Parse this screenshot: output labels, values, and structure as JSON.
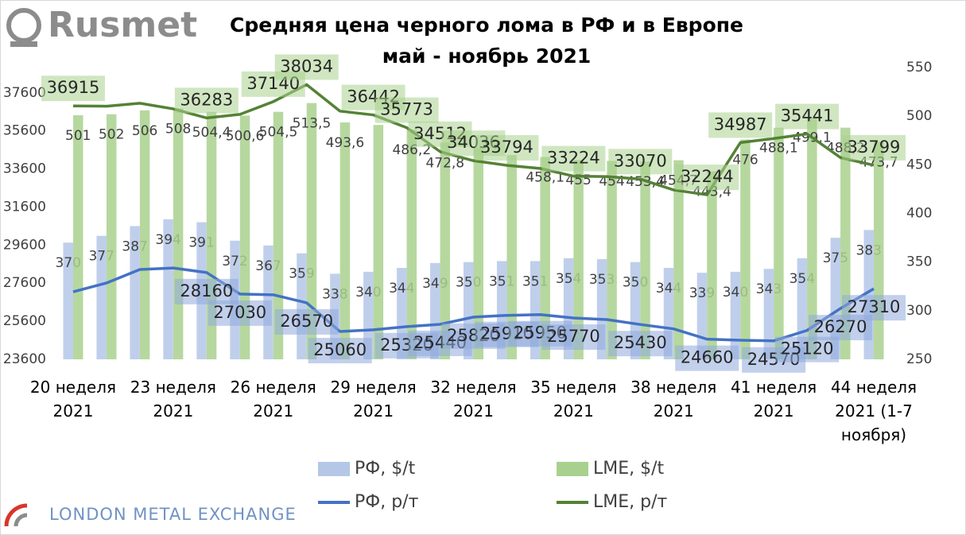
{
  "chart_data": {
    "type": "combo",
    "title": "Средняя цена черного лома в РФ и в Европе",
    "subtitle": "май - ноябрь 2021",
    "logos": [
      "Rusmet",
      "LONDON METAL EXCHANGE"
    ],
    "categories": [
      "20 неделя 2021",
      null,
      null,
      "23 неделя 2021",
      null,
      null,
      "26 неделя 2021",
      null,
      null,
      "29 неделя 2021",
      null,
      null,
      "32 неделя 2021",
      null,
      null,
      "35 неделя 2021",
      null,
      null,
      "38 неделя 2021",
      null,
      null,
      "41 неделя 2021",
      null,
      null,
      "44 неделя 2021 (1-7 ноября)"
    ],
    "ylim": [
      23600,
      38930
    ],
    "yticks": [
      23600,
      25600,
      27600,
      29600,
      31600,
      33600,
      35600,
      37600
    ],
    "y2lim": [
      250,
      550
    ],
    "y2ticks": [
      250,
      300,
      350,
      400,
      450,
      500,
      550
    ],
    "grid": false,
    "legend": "bottom",
    "series": [
      {
        "name": "РФ, $/t",
        "type": "bar",
        "axis": "y2",
        "color": "#b4c7e7",
        "values": [
          370,
          377,
          387,
          394,
          391,
          372,
          367,
          359,
          338,
          340,
          344,
          349,
          350,
          351,
          351,
          354,
          353,
          350,
          344,
          339,
          340,
          343,
          354,
          375,
          383
        ],
        "value_labels": [
          "370",
          "377",
          "387",
          "394",
          "391",
          "372",
          "367",
          "359",
          "338",
          "340",
          "344",
          "349",
          "350",
          "351",
          "351",
          "354",
          "353",
          "350",
          "344",
          "339",
          "340",
          "343",
          "354",
          "375",
          "383"
        ]
      },
      {
        "name": "LME, $/t",
        "type": "bar",
        "axis": "y2",
        "color": "#a9d18e",
        "values": [
          501,
          502,
          506,
          508,
          504.4,
          500.6,
          504.5,
          513.5,
          493.6,
          491,
          486.2,
          472.8,
          467,
          460,
          458.1,
          455,
          454,
          453.4,
          454.7,
          443.4,
          476,
          488.1,
          499.1,
          488.2,
          473.7
        ],
        "value_labels": [
          "501",
          "502",
          "506",
          "508",
          "504,4",
          "500,6",
          "504,5",
          "513,5",
          "493,6",
          null,
          "486,2",
          "472,8",
          null,
          null,
          "458,1",
          "455",
          "454",
          "453,4",
          "454,7",
          "443,4",
          "476",
          "488,1",
          "499,1",
          "488,2",
          "473,7"
        ]
      },
      {
        "name": "РФ, р/т",
        "type": "line",
        "axis": "y",
        "color": "#4472c4",
        "values": [
          27150,
          27610,
          28320,
          28400,
          28160,
          27030,
          26990,
          26570,
          25060,
          25150,
          25320,
          25440,
          25820,
          25910,
          25950,
          25770,
          25690,
          25430,
          25200,
          24660,
          24600,
          24570,
          25120,
          26270,
          27310
        ],
        "value_labels": [
          null,
          null,
          null,
          null,
          "28160",
          "27030",
          null,
          "26570",
          "25060",
          null,
          "25320",
          "25440",
          "25820",
          "25910",
          "25950",
          "25770",
          null,
          "25430",
          null,
          "24660",
          null,
          "24570",
          "25120",
          "26270",
          "27310"
        ]
      },
      {
        "name": "LME, р/т",
        "type": "line",
        "axis": "y",
        "color": "#548235",
        "values": [
          36915,
          36900,
          37056,
          36760,
          36283,
          36470,
          37140,
          38034,
          36640,
          36442,
          35773,
          34512,
          34036,
          33794,
          33630,
          33224,
          33200,
          33070,
          32500,
          32244,
          34987,
          35200,
          35441,
          34200,
          33799
        ],
        "value_labels": [
          "36915",
          null,
          null,
          null,
          "36283",
          null,
          "37140",
          "38034",
          null,
          "36442",
          "35773",
          "34512",
          "34036",
          "33794",
          null,
          "33224",
          null,
          "33070",
          null,
          "32244",
          "34987",
          null,
          "35441",
          null,
          "33799"
        ]
      }
    ]
  }
}
